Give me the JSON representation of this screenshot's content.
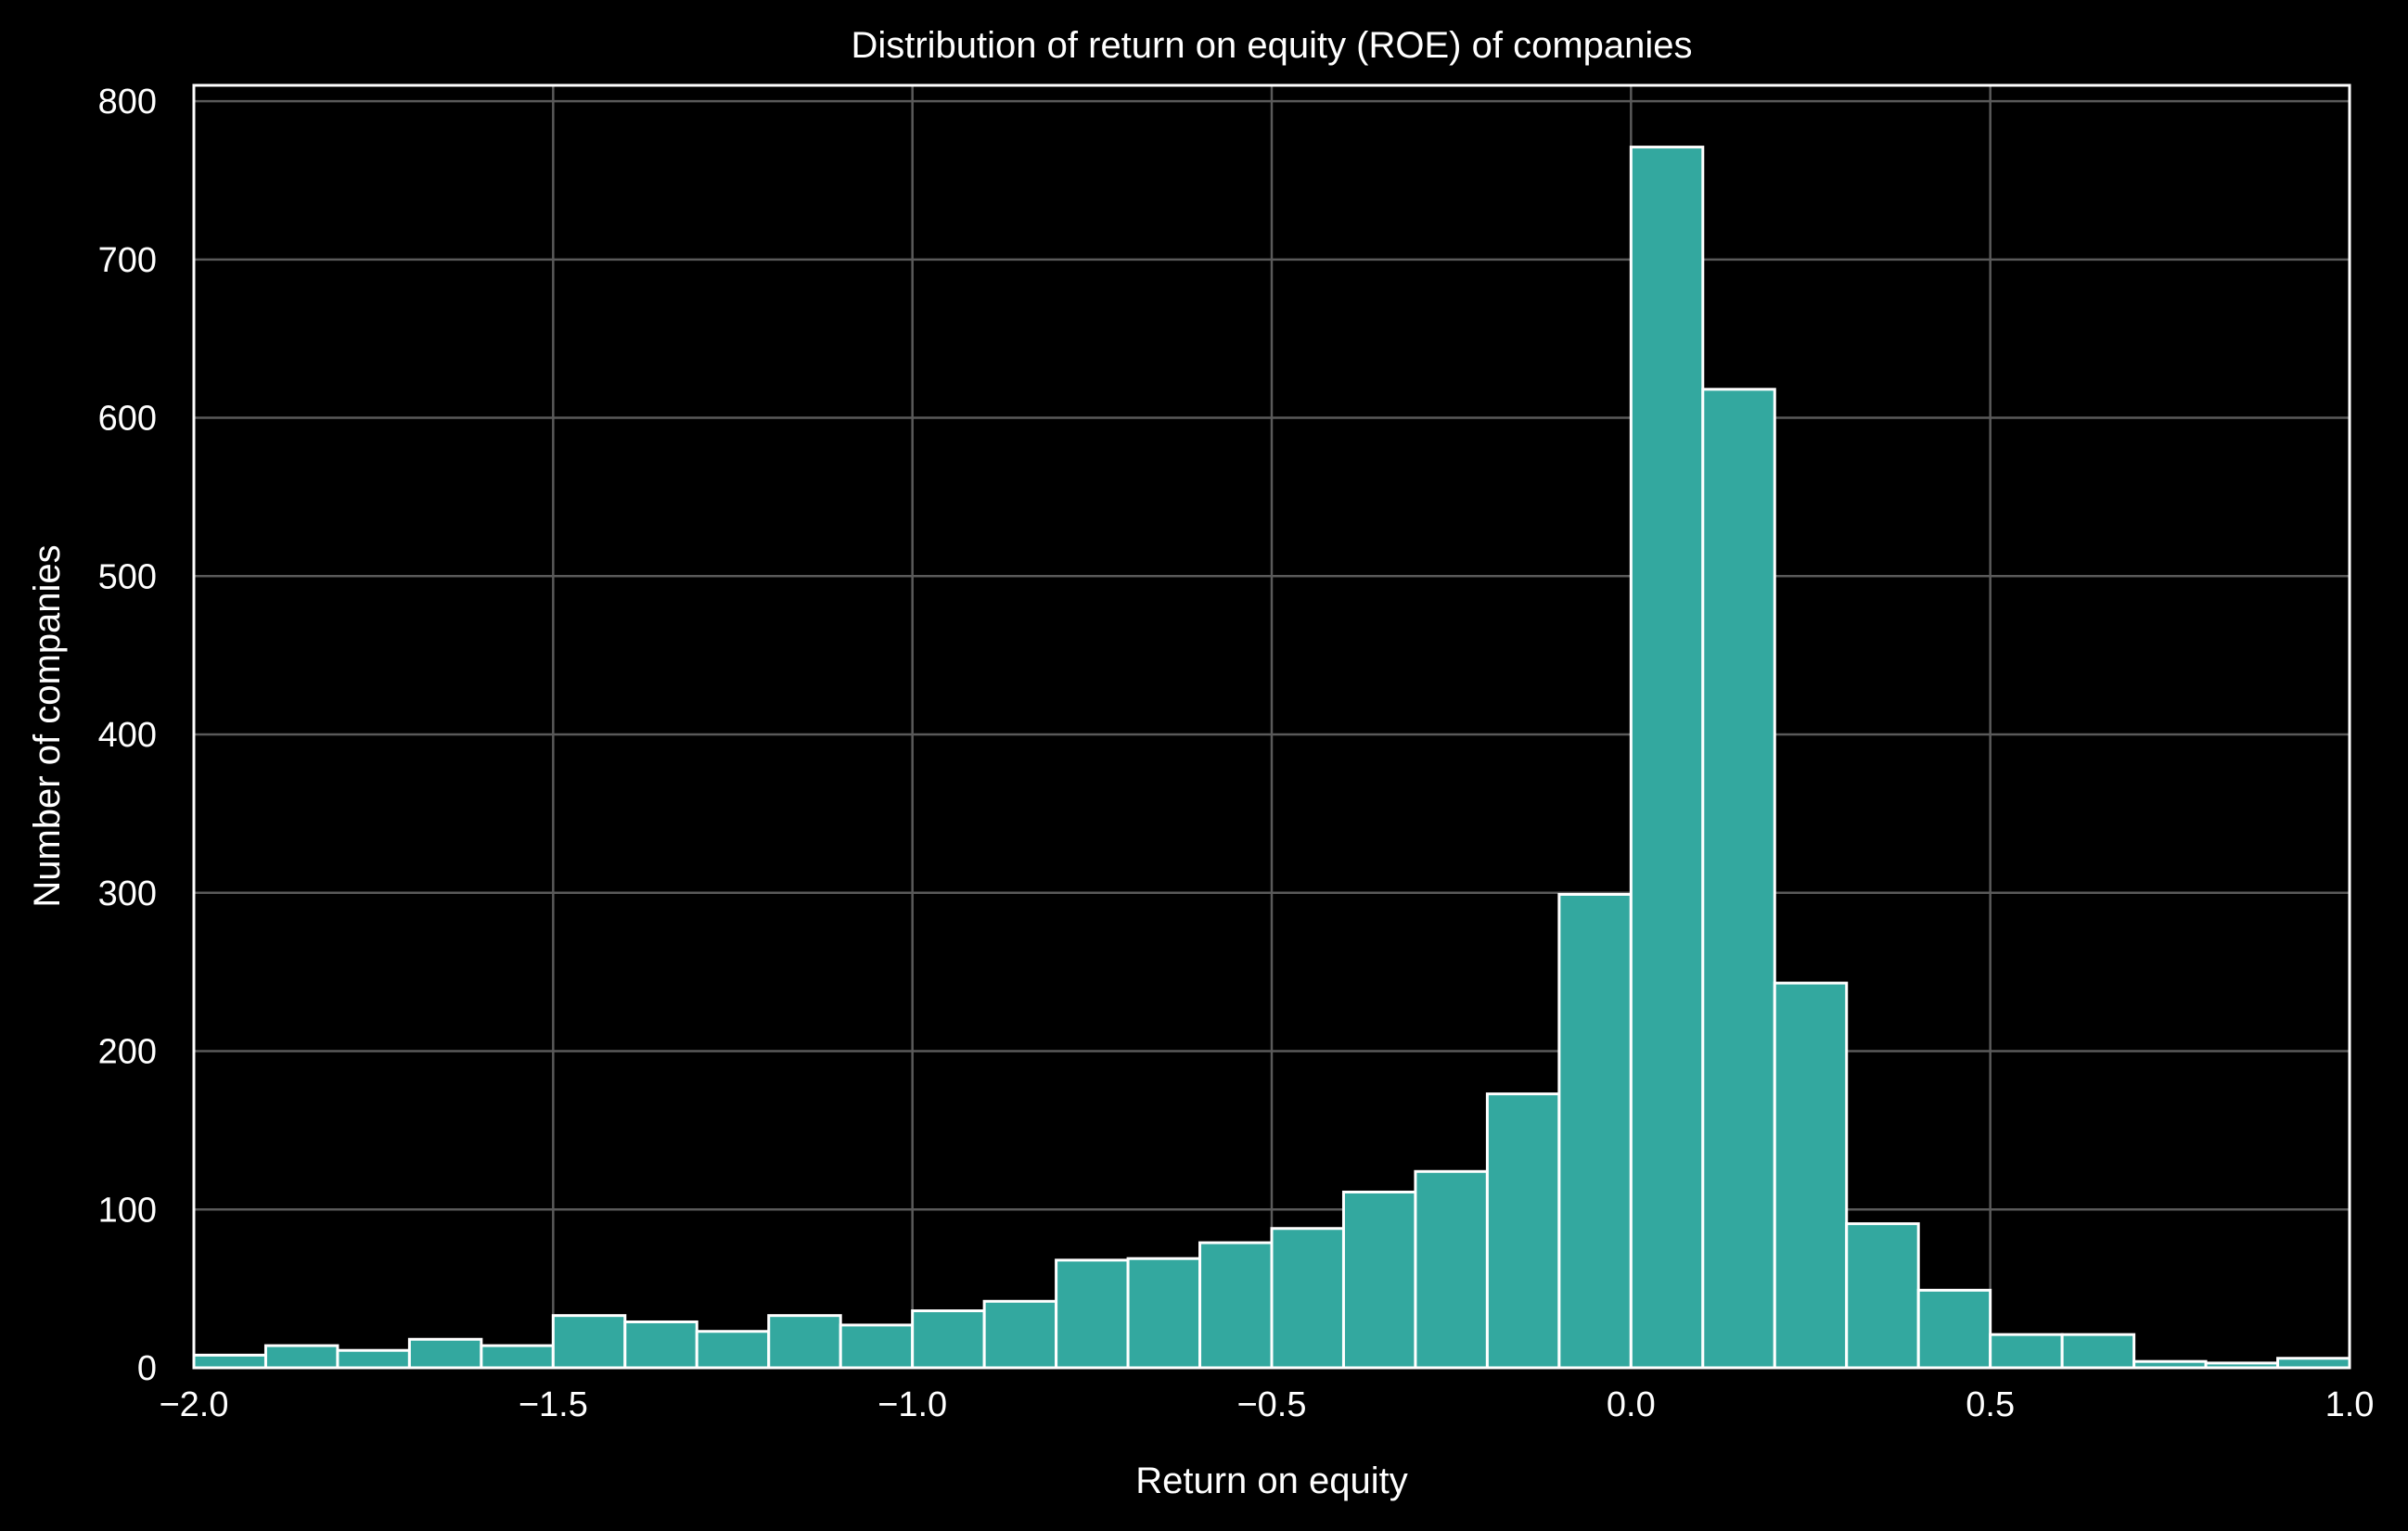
{
  "chart_data": {
    "type": "bar",
    "title": "Distribution of return on equity (ROE) of companies",
    "xlabel": "Return on equity",
    "ylabel": "Number of companies",
    "xlim": [
      -2.0,
      1.0
    ],
    "ylim": [
      0,
      810
    ],
    "bin_width": 0.1,
    "bin_edges": [
      -2.0,
      -1.9,
      -1.8,
      -1.7,
      -1.6,
      -1.5,
      -1.4,
      -1.3,
      -1.2,
      -1.1,
      -1.0,
      -0.9,
      -0.8,
      -0.7,
      -0.6,
      -0.5,
      -0.4,
      -0.3,
      -0.2,
      -0.1,
      0.0,
      0.1,
      0.2,
      0.3,
      0.4,
      0.5,
      0.6,
      0.7,
      0.8,
      0.9,
      1.0
    ],
    "values": [
      8,
      14,
      11,
      18,
      14,
      33,
      29,
      23,
      33,
      27,
      36,
      42,
      68,
      69,
      79,
      88,
      111,
      124,
      173,
      299,
      771,
      618,
      243,
      91,
      49,
      21,
      21,
      4,
      3,
      6
    ],
    "xticks": [
      -2.0,
      -1.5,
      -1.0,
      -0.5,
      0.0,
      0.5,
      1.0
    ],
    "xtick_labels": [
      "−2.0",
      "−1.5",
      "−1.0",
      "−0.5",
      "0.0",
      "0.5",
      "1.0"
    ],
    "yticks": [
      0,
      100,
      200,
      300,
      400,
      500,
      600,
      700,
      800
    ],
    "ytick_labels": [
      "0",
      "100",
      "200",
      "300",
      "400",
      "500",
      "600",
      "700",
      "800"
    ],
    "grid": true,
    "colors": {
      "background": "#000000",
      "bar_fill": "#33a89f",
      "bar_edge": "#ffffff",
      "grid": "#5a5a5a",
      "text": "#ffffff"
    }
  }
}
